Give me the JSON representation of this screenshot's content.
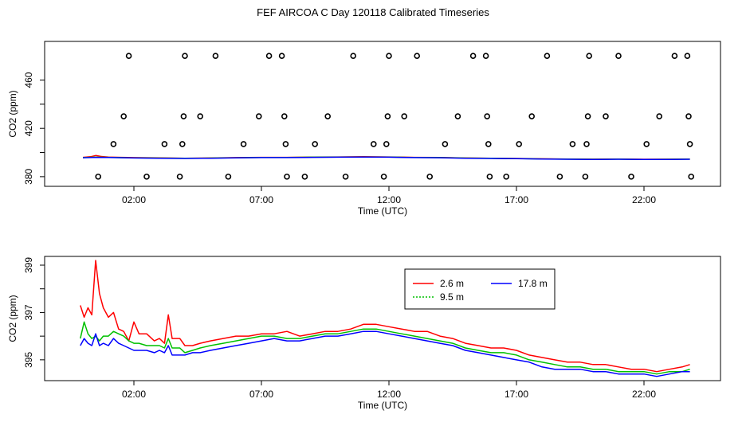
{
  "title": "FEF AIRCOA C  Day 120118  Calibrated Timeseries",
  "chart_data": [
    {
      "type": "scatter+line",
      "xlabel": "Time (UTC)",
      "ylabel": "CO2 (ppm)",
      "xlim": [
        -1.5,
        25
      ],
      "ylim": [
        372,
        492
      ],
      "x_ticks": [
        {
          "v": 2,
          "label": "02:00"
        },
        {
          "v": 7,
          "label": "07:00"
        },
        {
          "v": 12,
          "label": "12:00"
        },
        {
          "v": 17,
          "label": "17:00"
        },
        {
          "v": 22,
          "label": "22:00"
        }
      ],
      "y_ticks": [
        {
          "v": 380,
          "label": "380"
        },
        {
          "v": 420,
          "label": "420"
        },
        {
          "v": 460,
          "label": "460"
        }
      ],
      "y_minor_ticks": [
        400,
        440
      ],
      "calibration_points": [
        [
          0.6,
          380
        ],
        [
          1.2,
          407
        ],
        [
          1.6,
          430
        ],
        [
          1.8,
          480
        ],
        [
          2.5,
          380
        ],
        [
          3.2,
          407
        ],
        [
          3.8,
          380
        ],
        [
          3.9,
          407
        ],
        [
          3.95,
          430
        ],
        [
          4.0,
          480
        ],
        [
          4.6,
          430
        ],
        [
          5.2,
          480
        ],
        [
          5.7,
          380
        ],
        [
          6.3,
          407
        ],
        [
          6.9,
          430
        ],
        [
          7.3,
          480
        ],
        [
          7.8,
          480
        ],
        [
          7.9,
          430
        ],
        [
          7.95,
          407
        ],
        [
          8.0,
          380
        ],
        [
          8.7,
          380
        ],
        [
          9.1,
          407
        ],
        [
          9.6,
          430
        ],
        [
          10.3,
          380
        ],
        [
          10.6,
          480
        ],
        [
          11.4,
          407
        ],
        [
          11.8,
          380
        ],
        [
          11.9,
          407
        ],
        [
          11.95,
          430
        ],
        [
          12.0,
          480
        ],
        [
          12.6,
          430
        ],
        [
          13.1,
          480
        ],
        [
          13.6,
          380
        ],
        [
          14.2,
          407
        ],
        [
          14.7,
          430
        ],
        [
          15.3,
          480
        ],
        [
          15.8,
          480
        ],
        [
          15.85,
          430
        ],
        [
          15.9,
          407
        ],
        [
          15.95,
          380
        ],
        [
          16.6,
          380
        ],
        [
          17.1,
          407
        ],
        [
          17.6,
          430
        ],
        [
          18.2,
          480
        ],
        [
          18.7,
          380
        ],
        [
          19.2,
          407
        ],
        [
          19.7,
          380
        ],
        [
          19.75,
          407
        ],
        [
          19.8,
          430
        ],
        [
          19.85,
          480
        ],
        [
          20.5,
          430
        ],
        [
          21.0,
          480
        ],
        [
          21.5,
          380
        ],
        [
          22.1,
          407
        ],
        [
          22.6,
          430
        ],
        [
          23.2,
          480
        ],
        [
          23.7,
          480
        ],
        [
          23.75,
          430
        ],
        [
          23.8,
          407
        ],
        [
          23.85,
          380
        ]
      ],
      "series": [
        {
          "name": "2.6 m",
          "color": "#ff0000",
          "x": [
            0,
            0.3,
            0.5,
            0.7,
            1.0,
            1.5,
            2.0,
            3.0,
            4.0,
            5.0,
            6.0,
            7.0,
            8.0,
            9.0,
            10.0,
            11.0,
            12.0,
            13.0,
            14.0,
            15.0,
            16.0,
            17.0,
            18.0,
            19.0,
            20.0,
            21.0,
            22.0,
            23.0,
            23.8
          ],
          "values": [
            396,
            396.5,
            397.5,
            396.8,
            396.2,
            396,
            395.8,
            395.6,
            395.3,
            395.5,
            395.8,
            396,
            396,
            396.2,
            396.3,
            396.5,
            396.3,
            396,
            395.9,
            395.5,
            395.3,
            395.1,
            394.8,
            394.6,
            394.5,
            394.6,
            394.4,
            394.5,
            394.6
          ]
        },
        {
          "name": "9.5 m",
          "color": "#00c000",
          "x": [
            0,
            0.5,
            1.0,
            2.0,
            3.0,
            4.0,
            5.0,
            6.0,
            7.0,
            8.0,
            9.0,
            10.0,
            11.0,
            12.0,
            13.0,
            14.0,
            15.0,
            16.0,
            17.0,
            18.0,
            19.0,
            20.0,
            21.0,
            22.0,
            23.0,
            23.8
          ],
          "values": [
            395.8,
            396.1,
            396,
            395.6,
            395.4,
            395.2,
            395.4,
            395.7,
            395.9,
            395.9,
            396.1,
            396.2,
            396.3,
            396.2,
            395.9,
            395.8,
            395.4,
            395.2,
            395,
            394.7,
            394.5,
            394.4,
            394.5,
            394.3,
            394.4,
            394.5
          ]
        },
        {
          "name": "17.8 m",
          "color": "#0000ff",
          "x": [
            0,
            0.5,
            1.0,
            2.0,
            3.0,
            4.0,
            5.0,
            6.0,
            7.0,
            8.0,
            9.0,
            10.0,
            11.0,
            12.0,
            13.0,
            14.0,
            15.0,
            16.0,
            17.0,
            18.0,
            19.0,
            20.0,
            21.0,
            22.0,
            23.0,
            23.8
          ],
          "values": [
            395.7,
            396,
            395.9,
            395.5,
            395.3,
            395.1,
            395.3,
            395.6,
            395.8,
            395.8,
            396,
            396.1,
            396.2,
            396.1,
            395.8,
            395.7,
            395.3,
            395.1,
            394.9,
            394.6,
            394.4,
            394.3,
            394.4,
            394.2,
            394.3,
            394.4
          ]
        }
      ]
    },
    {
      "type": "line",
      "xlabel": "Time (UTC)",
      "ylabel": "CO2 (ppm)",
      "xlim": [
        -1.5,
        25
      ],
      "ylim": [
        394.12,
        399.37
      ],
      "x_ticks": [
        {
          "v": 2,
          "label": "02:00"
        },
        {
          "v": 7,
          "label": "07:00"
        },
        {
          "v": 12,
          "label": "12:00"
        },
        {
          "v": 17,
          "label": "17:00"
        },
        {
          "v": 22,
          "label": "22:00"
        }
      ],
      "y_ticks": [
        {
          "v": 395,
          "label": "395"
        },
        {
          "v": 397,
          "label": "397"
        },
        {
          "v": 399,
          "label": "399"
        }
      ],
      "y_minor_ticks": [
        396,
        398
      ],
      "legend": {
        "placement": "top-right",
        "entries": [
          {
            "label": "2.6 m",
            "color": "#ff0000",
            "dash": ""
          },
          {
            "label": "17.8 m",
            "color": "#0000ff",
            "dash": ""
          },
          {
            "label": "9.5 m",
            "color": "#00c000",
            "dash": "2,2"
          }
        ]
      },
      "series": [
        {
          "name": "2.6 m",
          "color": "#ff0000",
          "x": [
            -0.1,
            0.05,
            0.2,
            0.35,
            0.5,
            0.65,
            0.8,
            1.0,
            1.2,
            1.4,
            1.6,
            1.8,
            2.0,
            2.2,
            2.5,
            2.8,
            3.0,
            3.2,
            3.35,
            3.5,
            3.8,
            4.0,
            4.3,
            4.6,
            5.0,
            5.5,
            6.0,
            6.5,
            7.0,
            7.5,
            8.0,
            8.5,
            9.0,
            9.5,
            10.0,
            10.5,
            11.0,
            11.5,
            12.0,
            12.5,
            13.0,
            13.5,
            14.0,
            14.5,
            15.0,
            15.5,
            16.0,
            16.5,
            17.0,
            17.5,
            18.0,
            18.5,
            19.0,
            19.5,
            20.0,
            20.5,
            21.0,
            21.5,
            22.0,
            22.5,
            23.0,
            23.5,
            23.8
          ],
          "values": [
            397.3,
            396.8,
            397.2,
            396.9,
            399.2,
            397.8,
            397.2,
            396.8,
            397.0,
            396.3,
            396.2,
            395.8,
            396.6,
            396.1,
            396.1,
            395.8,
            395.9,
            395.7,
            396.9,
            395.9,
            395.9,
            395.6,
            395.6,
            395.7,
            395.8,
            395.9,
            396.0,
            396.0,
            396.1,
            396.1,
            396.2,
            396.0,
            396.1,
            396.2,
            396.2,
            396.3,
            396.5,
            396.5,
            396.4,
            396.3,
            396.2,
            396.2,
            396.0,
            395.9,
            395.7,
            395.6,
            395.5,
            395.5,
            395.4,
            395.2,
            395.1,
            395.0,
            394.9,
            394.9,
            394.8,
            394.8,
            394.7,
            394.6,
            394.6,
            394.5,
            394.6,
            394.7,
            394.8
          ]
        },
        {
          "name": "9.5 m",
          "color": "#00c000",
          "x": [
            -0.1,
            0.05,
            0.2,
            0.35,
            0.5,
            0.65,
            0.8,
            1.0,
            1.2,
            1.4,
            1.6,
            1.8,
            2.0,
            2.2,
            2.5,
            2.8,
            3.0,
            3.2,
            3.35,
            3.5,
            3.8,
            4.0,
            4.3,
            4.6,
            5.0,
            5.5,
            6.0,
            6.5,
            7.0,
            7.5,
            8.0,
            8.5,
            9.0,
            9.5,
            10.0,
            10.5,
            11.0,
            11.5,
            12.0,
            12.5,
            13.0,
            13.5,
            14.0,
            14.5,
            15.0,
            15.5,
            16.0,
            16.5,
            17.0,
            17.5,
            18.0,
            18.5,
            19.0,
            19.5,
            20.0,
            20.5,
            21.0,
            21.5,
            22.0,
            22.5,
            23.0,
            23.5,
            23.8
          ],
          "values": [
            395.9,
            396.6,
            396.1,
            395.9,
            396.0,
            395.8,
            396.0,
            396.0,
            396.2,
            396.1,
            396.0,
            395.8,
            395.7,
            395.7,
            395.6,
            395.6,
            395.6,
            395.5,
            395.9,
            395.5,
            395.5,
            395.3,
            395.4,
            395.5,
            395.6,
            395.7,
            395.8,
            395.9,
            396.0,
            396.0,
            395.9,
            395.9,
            396.0,
            396.1,
            396.1,
            396.2,
            396.3,
            396.3,
            396.2,
            396.1,
            396.0,
            395.9,
            395.8,
            395.7,
            395.5,
            395.4,
            395.3,
            395.3,
            395.2,
            395.0,
            394.9,
            394.8,
            394.7,
            394.7,
            394.6,
            394.6,
            394.5,
            394.5,
            394.5,
            394.4,
            394.5,
            394.5,
            394.6
          ]
        },
        {
          "name": "17.8 m",
          "color": "#0000ff",
          "x": [
            -0.1,
            0.05,
            0.2,
            0.35,
            0.5,
            0.65,
            0.8,
            1.0,
            1.2,
            1.4,
            1.6,
            1.8,
            2.0,
            2.2,
            2.5,
            2.8,
            3.0,
            3.2,
            3.35,
            3.5,
            3.8,
            4.0,
            4.3,
            4.6,
            5.0,
            5.5,
            6.0,
            6.5,
            7.0,
            7.5,
            8.0,
            8.5,
            9.0,
            9.5,
            10.0,
            10.5,
            11.0,
            11.5,
            12.0,
            12.5,
            13.0,
            13.5,
            14.0,
            14.5,
            15.0,
            15.5,
            16.0,
            16.5,
            17.0,
            17.5,
            18.0,
            18.5,
            19.0,
            19.5,
            20.0,
            20.5,
            21.0,
            21.5,
            22.0,
            22.5,
            23.0,
            23.5,
            23.8
          ],
          "values": [
            395.6,
            395.9,
            395.7,
            395.6,
            396.1,
            395.6,
            395.7,
            395.6,
            395.9,
            395.7,
            395.6,
            395.5,
            395.4,
            395.4,
            395.4,
            395.3,
            395.4,
            395.3,
            395.6,
            395.2,
            395.2,
            395.2,
            395.3,
            395.3,
            395.4,
            395.5,
            395.6,
            395.7,
            395.8,
            395.9,
            395.8,
            395.8,
            395.9,
            396.0,
            396.0,
            396.1,
            396.2,
            396.2,
            396.1,
            396.0,
            395.9,
            395.8,
            395.7,
            395.6,
            395.4,
            395.3,
            395.2,
            395.1,
            395.0,
            394.9,
            394.7,
            394.6,
            394.6,
            394.6,
            394.5,
            394.5,
            394.4,
            394.4,
            394.4,
            394.3,
            394.4,
            394.5,
            394.5
          ]
        }
      ]
    }
  ]
}
